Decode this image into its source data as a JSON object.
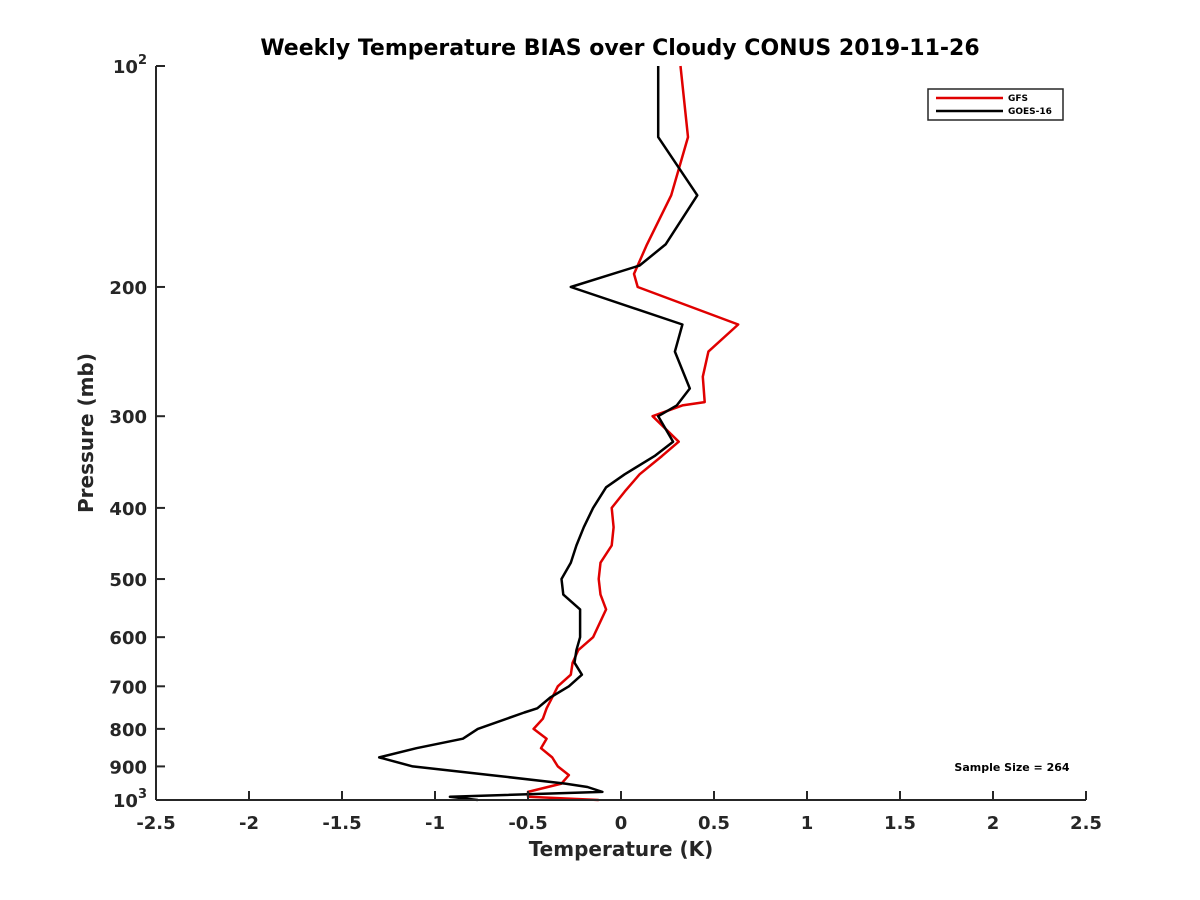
{
  "chart_data": {
    "type": "line",
    "title": "Weekly Temperature BIAS over Cloudy CONUS 2019-11-26",
    "xlabel": "Temperature (K)",
    "ylabel": "Pressure (mb)",
    "xlim": [
      -2.5,
      2.5
    ],
    "ylim": [
      1000,
      100
    ],
    "yscale": "log",
    "x_ticks": [
      -2.5,
      -2,
      -1.5,
      -1,
      -0.5,
      0,
      0.5,
      1,
      1.5,
      2,
      2.5
    ],
    "x_tick_labels": [
      "-2.5",
      "-2",
      "-1.5",
      "-1",
      "-0.5",
      "0",
      "0.5",
      "1",
      "1.5",
      "2",
      "2.5"
    ],
    "y_ticks": [
      100,
      200,
      300,
      400,
      500,
      600,
      700,
      800,
      900,
      1000
    ],
    "y_tick_labels": [
      {
        "base": "10",
        "exp": "2"
      },
      {
        "base": "200",
        "exp": ""
      },
      {
        "base": "300",
        "exp": ""
      },
      {
        "base": "400",
        "exp": ""
      },
      {
        "base": "500",
        "exp": ""
      },
      {
        "base": "600",
        "exp": ""
      },
      {
        "base": "700",
        "exp": ""
      },
      {
        "base": "800",
        "exp": ""
      },
      {
        "base": "900",
        "exp": ""
      },
      {
        "base": "10",
        "exp": "3"
      }
    ],
    "legend_position": "top-right",
    "annotation": "Sample Size = 264",
    "series": [
      {
        "name": "GFS",
        "color": "#e00000",
        "points": [
          [
            0.32,
            100
          ],
          [
            0.36,
            125
          ],
          [
            0.27,
            150
          ],
          [
            0.14,
            175
          ],
          [
            0.07,
            192
          ],
          [
            0.09,
            200
          ],
          [
            0.63,
            225
          ],
          [
            0.47,
            245
          ],
          [
            0.44,
            265
          ],
          [
            0.45,
            287
          ],
          [
            0.33,
            290
          ],
          [
            0.17,
            300
          ],
          [
            0.31,
            325
          ],
          [
            0.22,
            340
          ],
          [
            0.1,
            360
          ],
          [
            0.02,
            380
          ],
          [
            -0.05,
            400
          ],
          [
            -0.04,
            425
          ],
          [
            -0.05,
            450
          ],
          [
            -0.11,
            475
          ],
          [
            -0.12,
            500
          ],
          [
            -0.11,
            525
          ],
          [
            -0.08,
            550
          ],
          [
            -0.15,
            600
          ],
          [
            -0.23,
            625
          ],
          [
            -0.26,
            650
          ],
          [
            -0.27,
            675
          ],
          [
            -0.34,
            700
          ],
          [
            -0.37,
            725
          ],
          [
            -0.4,
            750
          ],
          [
            -0.42,
            775
          ],
          [
            -0.47,
            800
          ],
          [
            -0.4,
            825
          ],
          [
            -0.43,
            850
          ],
          [
            -0.37,
            875
          ],
          [
            -0.34,
            900
          ],
          [
            -0.28,
            925
          ],
          [
            -0.32,
            950
          ],
          [
            -0.5,
            975
          ],
          [
            -0.5,
            990
          ],
          [
            -0.12,
            1000
          ]
        ]
      },
      {
        "name": "GOES-16",
        "color": "#000000",
        "points": [
          [
            0.2,
            100
          ],
          [
            0.2,
            125
          ],
          [
            0.41,
            150
          ],
          [
            0.24,
            175
          ],
          [
            0.1,
            187
          ],
          [
            -0.27,
            200
          ],
          [
            0.33,
            225
          ],
          [
            0.29,
            245
          ],
          [
            0.37,
            275
          ],
          [
            0.3,
            290
          ],
          [
            0.2,
            300
          ],
          [
            0.28,
            325
          ],
          [
            0.18,
            340
          ],
          [
            0.02,
            360
          ],
          [
            -0.08,
            375
          ],
          [
            -0.15,
            400
          ],
          [
            -0.2,
            425
          ],
          [
            -0.24,
            450
          ],
          [
            -0.27,
            475
          ],
          [
            -0.32,
            500
          ],
          [
            -0.31,
            525
          ],
          [
            -0.22,
            550
          ],
          [
            -0.22,
            600
          ],
          [
            -0.24,
            625
          ],
          [
            -0.25,
            650
          ],
          [
            -0.21,
            675
          ],
          [
            -0.28,
            700
          ],
          [
            -0.38,
            725
          ],
          [
            -0.45,
            750
          ],
          [
            -0.52,
            760
          ],
          [
            -0.77,
            800
          ],
          [
            -0.85,
            825
          ],
          [
            -1.1,
            850
          ],
          [
            -1.3,
            875
          ],
          [
            -1.12,
            900
          ],
          [
            -0.7,
            925
          ],
          [
            -0.3,
            950
          ],
          [
            -0.18,
            960
          ],
          [
            -0.1,
            975
          ],
          [
            -0.92,
            990
          ],
          [
            -0.77,
            1000
          ]
        ]
      }
    ]
  }
}
